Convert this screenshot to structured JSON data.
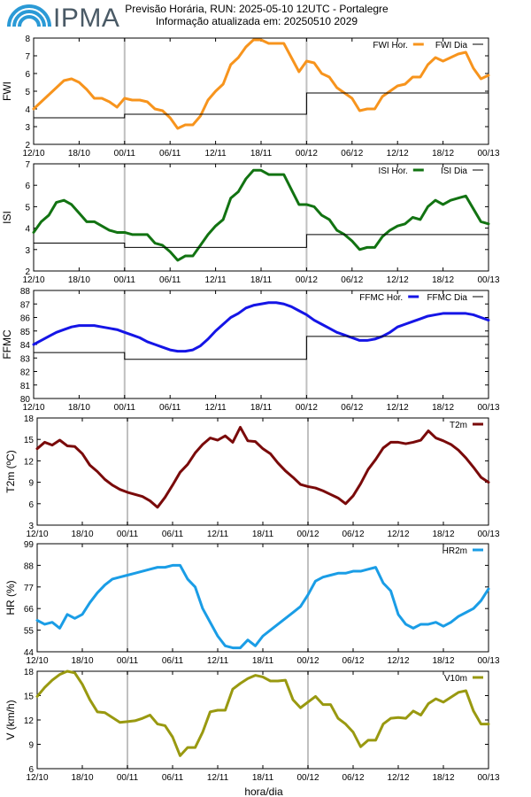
{
  "header": {
    "logo_text": "IPMA",
    "title_line1": "Previsão Horária, RUN: 2025-05-10 12UTC - Portalegre",
    "title_line2": "Informação atualizada em: 20250510 2029"
  },
  "colors": {
    "fwi": "#f7941d",
    "isi": "#127312",
    "ffmc": "#1515e6",
    "t2m": "#7a0a0a",
    "hr2m": "#1a9de6",
    "v10m": "#999910",
    "daily": "#000000",
    "separator": "#c0c0c0",
    "logo_blue": "#2b9ad6"
  },
  "xaxis": {
    "label": "hora/dia",
    "ticks_top4": [
      "12/10",
      "18/10",
      "00/11",
      "06/11",
      "12/11",
      "18/11",
      "00/12",
      "06/12",
      "12/12",
      "18/12",
      "00/13"
    ],
    "ticks_bottom3": [
      "12/10",
      "18/10",
      "00/11",
      "06/11",
      "12/11",
      "18/11",
      "00/12",
      "06/12",
      "12/12",
      "18/12",
      "00/13"
    ]
  },
  "chart_data": [
    {
      "id": "fwi",
      "type": "line",
      "ylabel": "FWI",
      "ylim": [
        2,
        8
      ],
      "yticks": [
        "2",
        "3",
        "4",
        "5",
        "6",
        "7",
        "8"
      ],
      "hours_from_start": [
        0,
        1,
        2,
        3,
        4,
        5,
        6,
        7,
        8,
        9,
        10,
        11,
        12,
        13,
        14,
        15,
        16,
        17,
        18,
        19,
        20,
        21,
        22,
        23,
        24,
        25,
        26,
        27,
        28,
        29,
        30,
        31,
        32,
        33,
        34,
        35,
        36,
        37,
        38,
        39,
        40,
        41,
        42,
        43,
        44,
        45,
        46,
        47,
        48,
        49,
        50,
        51,
        52,
        53,
        54,
        55,
        56,
        57,
        58,
        59,
        60
      ],
      "series": [
        {
          "name": "FWI Hor.",
          "style": "thick",
          "values": [
            4.0,
            4.4,
            4.8,
            5.2,
            5.6,
            5.7,
            5.5,
            5.1,
            4.6,
            4.6,
            4.4,
            4.1,
            4.6,
            4.5,
            4.5,
            4.4,
            4.0,
            3.9,
            3.5,
            2.9,
            3.1,
            3.1,
            3.6,
            4.5,
            5.0,
            5.4,
            6.5,
            6.9,
            7.5,
            7.9,
            7.9,
            7.7,
            7.7,
            7.7,
            6.9,
            6.1,
            6.7,
            6.6,
            6.0,
            5.8,
            5.2,
            4.9,
            4.6,
            3.9,
            4.0,
            4.0,
            4.7,
            5.0,
            5.3,
            5.4,
            5.8,
            5.8,
            6.5,
            6.9,
            6.7,
            6.9,
            7.1,
            7.2,
            6.3,
            5.7,
            5.9
          ]
        },
        {
          "name": "FWI Dia",
          "style": "step",
          "steps": [
            {
              "x0": 0,
              "x1": 12,
              "y": 3.5
            },
            {
              "x0": 12,
              "x1": 36,
              "y": 3.7
            },
            {
              "x0": 36,
              "x1": 60,
              "y": 4.9
            }
          ]
        }
      ]
    },
    {
      "id": "isi",
      "type": "line",
      "ylabel": "ISI",
      "ylim": [
        2,
        7
      ],
      "yticks": [
        "2",
        "3",
        "4",
        "5",
        "6",
        "7"
      ],
      "series": [
        {
          "name": "ISI Hor.",
          "style": "thick",
          "values": [
            3.8,
            4.3,
            4.6,
            5.2,
            5.3,
            5.1,
            4.7,
            4.3,
            4.3,
            4.1,
            3.9,
            3.8,
            3.8,
            3.7,
            3.7,
            3.7,
            3.3,
            3.2,
            2.9,
            2.5,
            2.7,
            2.7,
            3.2,
            3.7,
            4.1,
            4.4,
            5.4,
            5.7,
            6.3,
            6.7,
            6.7,
            6.5,
            6.5,
            6.5,
            5.8,
            5.1,
            5.1,
            5.0,
            4.6,
            4.4,
            3.9,
            3.7,
            3.4,
            3.0,
            3.1,
            3.1,
            3.6,
            3.9,
            4.1,
            4.2,
            4.5,
            4.4,
            5.0,
            5.3,
            5.1,
            5.3,
            5.4,
            5.5,
            4.9,
            4.3,
            4.2
          ]
        },
        {
          "name": "ISI Dia",
          "style": "step",
          "steps": [
            {
              "x0": 0,
              "x1": 12,
              "y": 3.3
            },
            {
              "x0": 12,
              "x1": 36,
              "y": 3.1
            },
            {
              "x0": 36,
              "x1": 60,
              "y": 3.7
            }
          ]
        }
      ]
    },
    {
      "id": "ffmc",
      "type": "line",
      "ylabel": "FFMC",
      "ylim": [
        80,
        88
      ],
      "yticks": [
        "80",
        "81",
        "82",
        "83",
        "84",
        "85",
        "86",
        "87",
        "88"
      ],
      "series": [
        {
          "name": "FFMC Hor.",
          "style": "thick",
          "values": [
            84.0,
            84.3,
            84.6,
            84.9,
            85.1,
            85.3,
            85.4,
            85.4,
            85.4,
            85.3,
            85.2,
            85.1,
            84.9,
            84.7,
            84.5,
            84.2,
            84.0,
            83.8,
            83.6,
            83.5,
            83.5,
            83.6,
            83.9,
            84.4,
            85.0,
            85.5,
            86.0,
            86.3,
            86.7,
            86.9,
            87.0,
            87.1,
            87.1,
            87.0,
            86.8,
            86.5,
            86.2,
            85.8,
            85.5,
            85.2,
            84.9,
            84.7,
            84.5,
            84.3,
            84.3,
            84.4,
            84.6,
            84.9,
            85.3,
            85.5,
            85.7,
            85.9,
            86.1,
            86.2,
            86.3,
            86.3,
            86.3,
            86.3,
            86.2,
            86.0,
            85.8
          ]
        },
        {
          "name": "FFMC Dia",
          "style": "step",
          "steps": [
            {
              "x0": 0,
              "x1": 12,
              "y": 83.4
            },
            {
              "x0": 12,
              "x1": 36,
              "y": 82.9
            },
            {
              "x0": 36,
              "x1": 60,
              "y": 84.6
            }
          ]
        }
      ]
    },
    {
      "id": "t2m",
      "type": "line",
      "ylabel": "T2m (ºC)",
      "ylim": [
        3,
        18
      ],
      "yticks": [
        "3",
        "6",
        "9",
        "12",
        "15",
        "18"
      ],
      "series": [
        {
          "name": "T2m",
          "style": "thick",
          "values": [
            13.7,
            14.6,
            14.2,
            14.9,
            14.1,
            14.0,
            13.0,
            11.4,
            10.5,
            9.4,
            8.6,
            8.0,
            7.6,
            7.3,
            7.0,
            6.4,
            5.5,
            6.9,
            8.6,
            10.4,
            11.5,
            13.1,
            14.3,
            15.2,
            14.9,
            15.5,
            14.6,
            16.7,
            14.8,
            14.7,
            13.7,
            13.0,
            11.7,
            10.6,
            9.7,
            8.7,
            8.4,
            8.2,
            7.8,
            7.3,
            6.8,
            6.0,
            7.1,
            8.8,
            10.8,
            12.2,
            13.8,
            14.6,
            14.6,
            14.4,
            14.6,
            14.9,
            16.2,
            15.2,
            14.8,
            14.3,
            13.5,
            12.4,
            11.1,
            9.7,
            9.0
          ]
        }
      ]
    },
    {
      "id": "hr2m",
      "type": "line",
      "ylabel": "HR (%)",
      "ylim": [
        44,
        99
      ],
      "yticks": [
        "44",
        "55",
        "66",
        "77",
        "88",
        "99"
      ],
      "series": [
        {
          "name": "HR2m",
          "style": "thick",
          "values": [
            60,
            58,
            59,
            56,
            63,
            61,
            63,
            69,
            74,
            78,
            81,
            82,
            83,
            84,
            85,
            86,
            87,
            87,
            88,
            88,
            81,
            77,
            66,
            59,
            52,
            47,
            46,
            46,
            50,
            47,
            52,
            55,
            58,
            61,
            64,
            67,
            73,
            80,
            82,
            83,
            84,
            84,
            85,
            85,
            86,
            87,
            79,
            75,
            63,
            58,
            56,
            58,
            58,
            59,
            57,
            59,
            62,
            64,
            66,
            70,
            76
          ]
        },
        {
          "name": "",
          "style": "hidden",
          "values": []
        }
      ]
    },
    {
      "id": "v10m",
      "type": "line",
      "ylabel": "V (km/h)",
      "ylim": [
        6,
        18
      ],
      "yticks": [
        "6",
        "9",
        "12",
        "15",
        "18"
      ],
      "series": [
        {
          "name": "V10m",
          "style": "thick",
          "values": [
            14.9,
            16.0,
            16.9,
            17.6,
            18.0,
            17.8,
            16.4,
            14.5,
            13.0,
            12.9,
            12.3,
            11.7,
            11.8,
            11.9,
            12.2,
            12.6,
            11.5,
            11.3,
            9.9,
            7.6,
            8.6,
            8.6,
            10.5,
            13.0,
            13.2,
            13.2,
            15.8,
            16.5,
            17.1,
            17.5,
            17.3,
            16.8,
            16.8,
            16.9,
            14.5,
            13.5,
            14.2,
            14.9,
            13.9,
            13.9,
            12.2,
            11.5,
            10.5,
            8.7,
            9.5,
            9.5,
            11.5,
            12.2,
            12.3,
            12.2,
            13.1,
            12.6,
            14.0,
            14.6,
            14.2,
            14.8,
            15.4,
            15.6,
            13.1,
            11.5,
            11.5
          ]
        }
      ]
    }
  ]
}
